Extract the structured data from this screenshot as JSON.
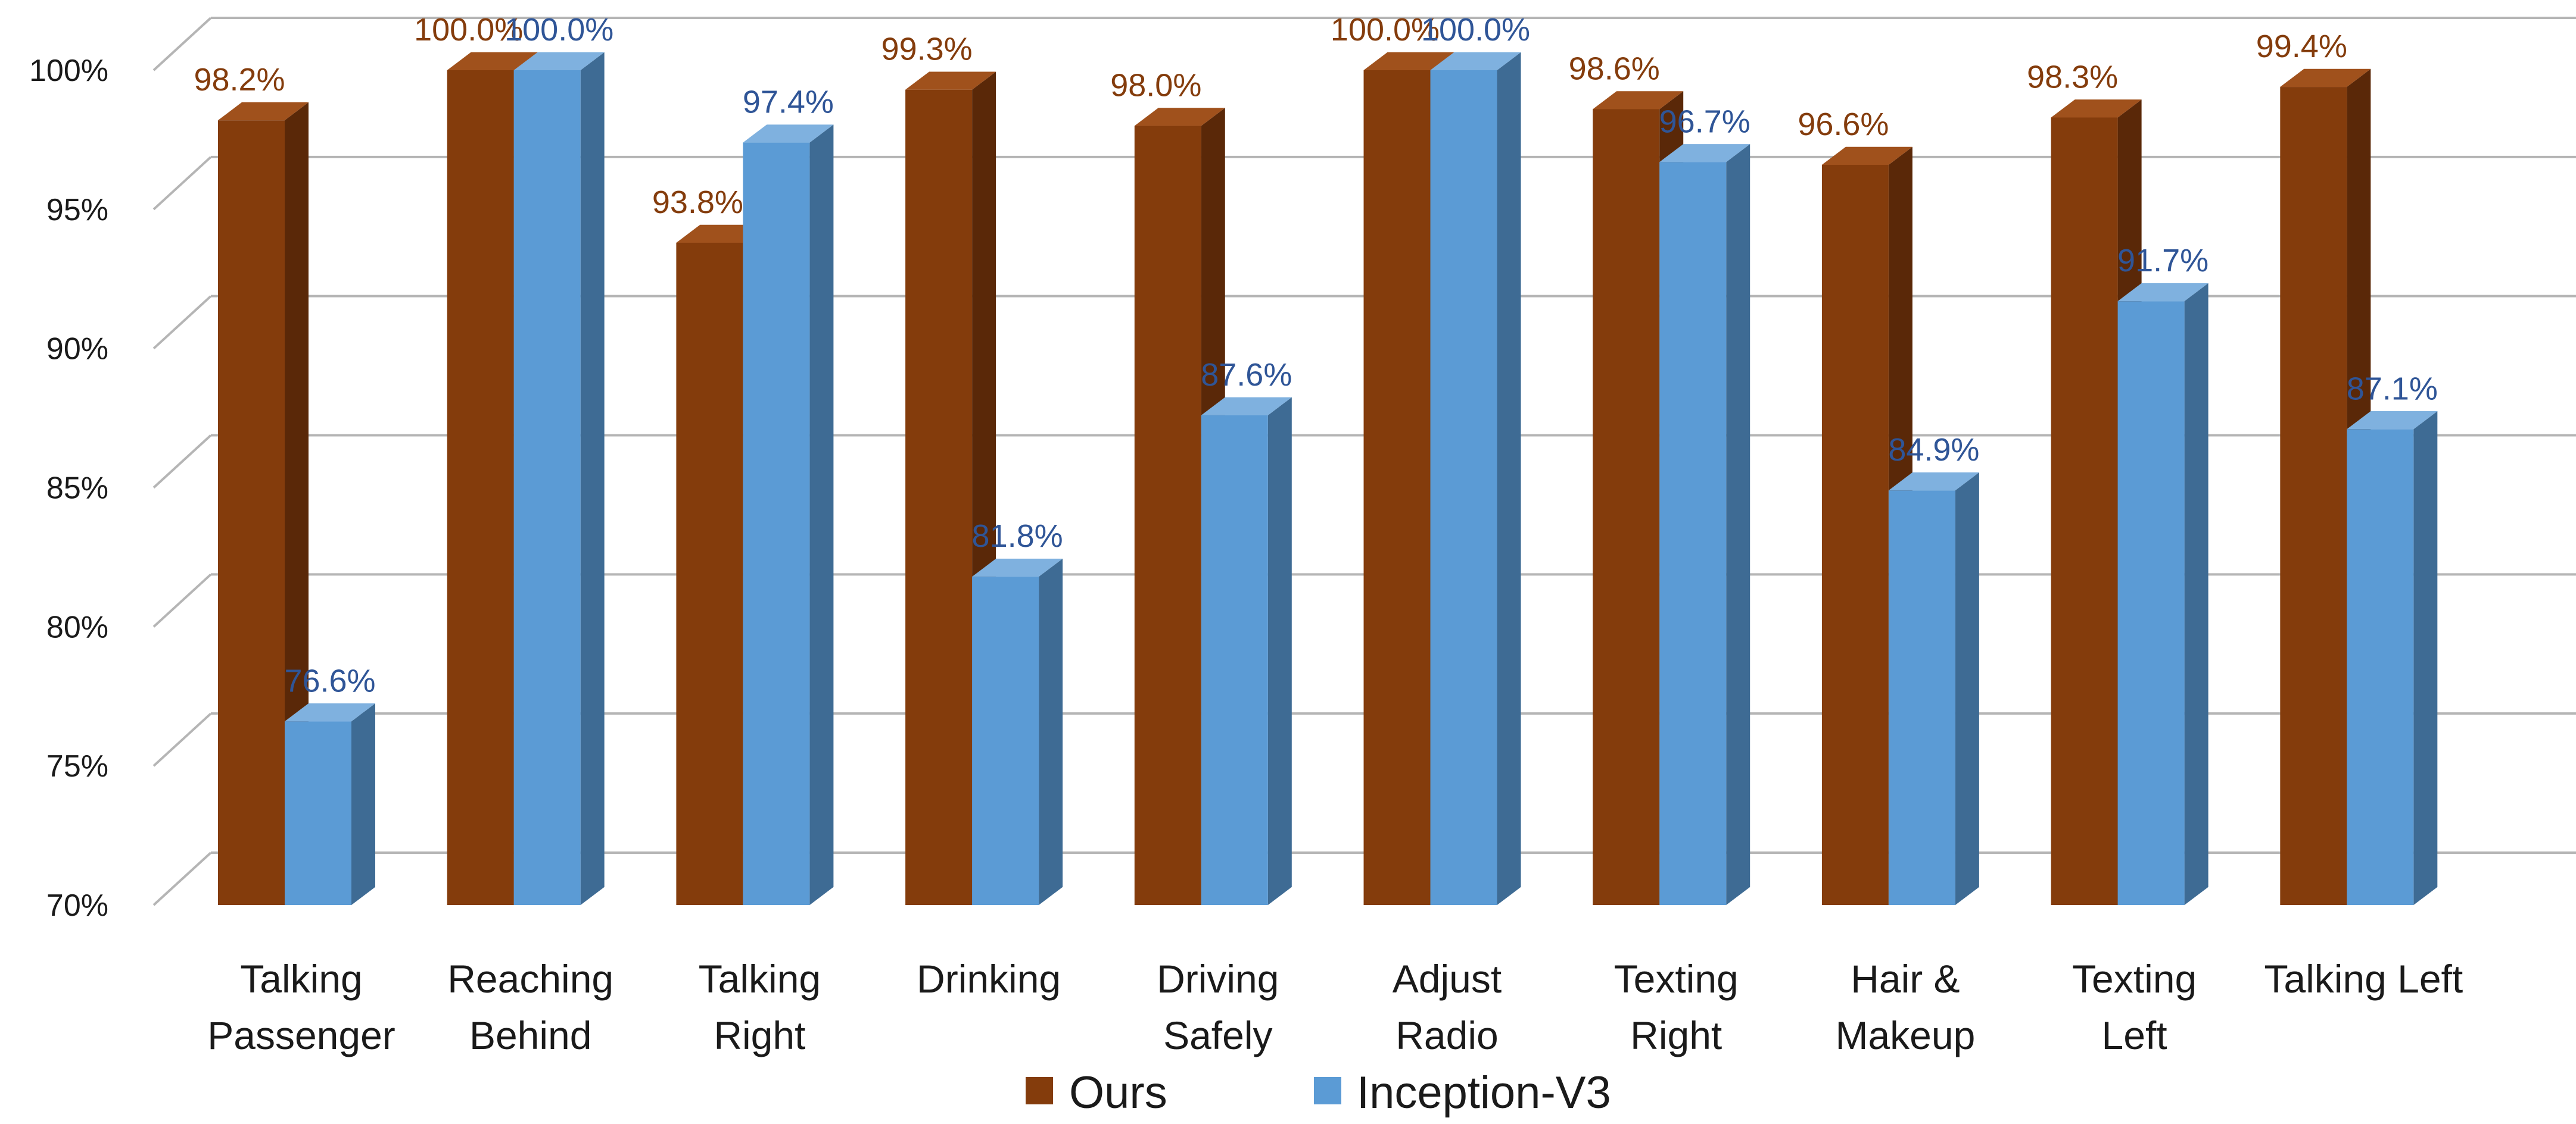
{
  "chart_data": {
    "type": "bar",
    "title": "",
    "xlabel": "",
    "ylabel": "",
    "ylim": [
      70,
      100
    ],
    "y_ticks": [
      "70%",
      "75%",
      "80%",
      "85%",
      "90%",
      "95%",
      "100%"
    ],
    "categories": [
      [
        "Talking",
        "Passenger"
      ],
      [
        "Reaching",
        "Behind"
      ],
      [
        "Talking",
        "Right"
      ],
      [
        "Drinking"
      ],
      [
        "Driving",
        "Safely"
      ],
      [
        "Adjust",
        "Radio"
      ],
      [
        "Texting",
        "Right"
      ],
      [
        "Hair &",
        "Makeup"
      ],
      [
        "Texting",
        "Left"
      ],
      [
        "Talking Left"
      ]
    ],
    "series": [
      {
        "name": "Ours",
        "color": "#843C0C",
        "side_color": "#5A2808",
        "top_color": "#A0511C",
        "label_color": "#843C0C",
        "values": [
          98.2,
          100.0,
          93.8,
          99.3,
          98.0,
          100.0,
          98.6,
          96.6,
          98.3,
          99.4
        ],
        "labels": [
          "98.2%",
          "100.0%",
          "93.8%",
          "99.3%",
          "98.0%",
          "100.0%",
          "98.6%",
          "96.6%",
          "98.3%",
          "99.4%"
        ]
      },
      {
        "name": "Inception-V3",
        "color": "#5B9BD5",
        "side_color": "#3E6B94",
        "top_color": "#7FB1DF",
        "label_color": "#2F5597",
        "values": [
          76.6,
          100.0,
          97.4,
          81.8,
          87.6,
          100.0,
          96.7,
          84.9,
          91.7,
          87.1
        ],
        "labels": [
          "76.6%",
          "100.0%",
          "97.4%",
          "81.8%",
          "87.6%",
          "100.0%",
          "96.7%",
          "84.9%",
          "91.7%",
          "87.1%"
        ]
      }
    ],
    "grid": true,
    "legend": "bottom-center"
  }
}
